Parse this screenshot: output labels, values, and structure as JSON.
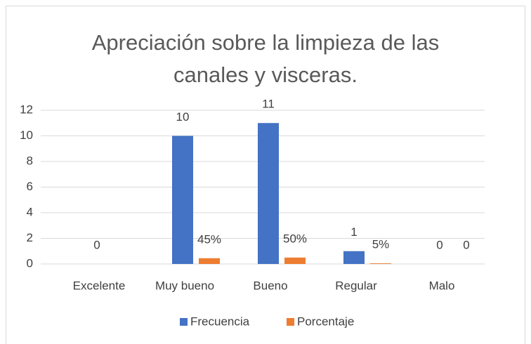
{
  "chart_data": {
    "type": "bar",
    "title": "Apreciación sobre la limpieza de las canales y visceras.",
    "categories": [
      "Excelente",
      "Muy bueno",
      "Bueno",
      "Regular",
      "Malo"
    ],
    "series": [
      {
        "name": "Frecuencia",
        "color": "#4472c4",
        "values": [
          0,
          10,
          11,
          1,
          0
        ]
      },
      {
        "name": "Porcentaje",
        "color": "#ed7d31",
        "values": [
          0,
          0.45,
          0.5,
          0.05,
          0
        ],
        "value_labels": [
          null,
          "45%",
          "50%",
          "5%",
          "0"
        ]
      }
    ],
    "ylim": [
      0,
      12
    ],
    "yticks": [
      0,
      2,
      4,
      6,
      8,
      10,
      12
    ],
    "grid": true,
    "legend": "bottom"
  }
}
